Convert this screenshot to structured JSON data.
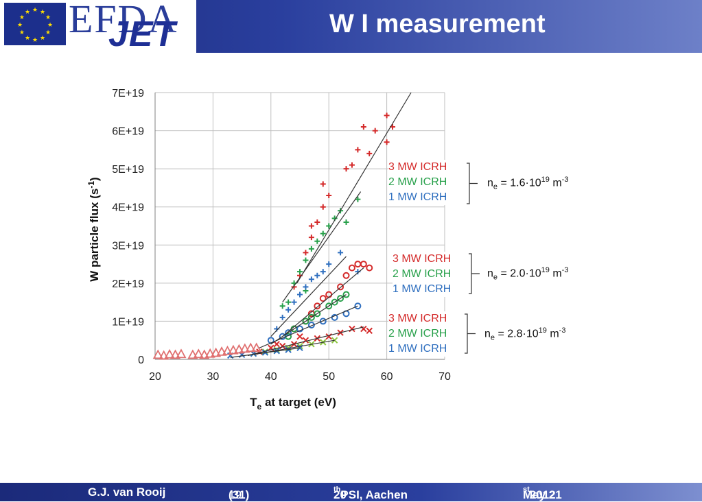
{
  "header": {
    "title": "W I measurement",
    "logo_efda": "EFDA",
    "logo_jet": "JET"
  },
  "footer": {
    "author": "G.J. van Rooij",
    "page": "19",
    "page_total": "(31)",
    "conf_num": "20",
    "conf_sup": "th",
    "conf_rest": " PSI, Aachen",
    "date_pre": "May 21",
    "date_sup": "st",
    "date_post": " 2012"
  },
  "colors": {
    "red": "#d42a2a",
    "green": "#27a04a",
    "blue": "#2f6fbf",
    "lightgreen": "#8cc63f",
    "line": "#333333"
  },
  "chart_data": {
    "type": "scatter",
    "xlabel_main": "T",
    "xlabel_sub": "e",
    "xlabel_rest": " at target (eV)",
    "ylabel_main": "W particle flux (s",
    "ylabel_sup": "-1",
    "ylabel_end": ")",
    "xlim": [
      20,
      70
    ],
    "ylim": [
      0,
      7e+19
    ],
    "x_ticks": [
      20,
      30,
      40,
      50,
      60,
      70
    ],
    "x_tick_labels": [
      "20",
      "30",
      "40",
      "50",
      "60",
      "70"
    ],
    "y_ticks": [
      0,
      1e+19,
      2e+19,
      3e+19,
      4e+19,
      5e+19,
      6e+19,
      7e+19
    ],
    "y_tick_labels": [
      "0",
      "1E+19",
      "2E+19",
      "3E+19",
      "4E+19",
      "5E+19",
      "6E+19",
      "7E+19"
    ],
    "grid": true,
    "series": [
      {
        "marker": "plus",
        "color": "#d42a2a",
        "points": [
          [
            45,
            2.2e+19
          ],
          [
            46,
            2.8e+19
          ],
          [
            47,
            3.2e+19
          ],
          [
            48,
            3.6e+19
          ],
          [
            49,
            4e+19
          ],
          [
            50,
            4.3e+19
          ],
          [
            53,
            5e+19
          ],
          [
            54,
            5.1e+19
          ],
          [
            55,
            5.5e+19
          ],
          [
            56,
            6.1e+19
          ],
          [
            57,
            5.4e+19
          ],
          [
            58,
            6e+19
          ],
          [
            60,
            6.4e+19
          ],
          [
            60,
            5.7e+19
          ],
          [
            61,
            6.1e+19
          ],
          [
            44,
            1.9e+19
          ],
          [
            47,
            3.5e+19
          ],
          [
            49,
            4.6e+19
          ]
        ]
      },
      {
        "marker": "plus",
        "color": "#27a04a",
        "points": [
          [
            43,
            1.5e+19
          ],
          [
            44,
            2e+19
          ],
          [
            45,
            2.3e+19
          ],
          [
            46,
            2.6e+19
          ],
          [
            47,
            2.9e+19
          ],
          [
            48,
            3.1e+19
          ],
          [
            49,
            3.3e+19
          ],
          [
            50,
            3.5e+19
          ],
          [
            51,
            3.7e+19
          ],
          [
            52,
            3.9e+19
          ],
          [
            53,
            3.6e+19
          ],
          [
            55,
            4.2e+19
          ],
          [
            42,
            1.4e+19
          ],
          [
            46,
            1.8e+19
          ]
        ]
      },
      {
        "marker": "plus",
        "color": "#2f6fbf",
        "points": [
          [
            41,
            8e+18
          ],
          [
            42,
            1.1e+19
          ],
          [
            43,
            1.3e+19
          ],
          [
            44,
            1.5e+19
          ],
          [
            45,
            1.7e+19
          ],
          [
            46,
            1.9e+19
          ],
          [
            47,
            2.1e+19
          ],
          [
            48,
            2.2e+19
          ],
          [
            49,
            2.3e+19
          ],
          [
            50,
            2.5e+19
          ],
          [
            52,
            2.8e+19
          ],
          [
            55,
            2.3e+19
          ]
        ]
      },
      {
        "marker": "circle",
        "color": "#d42a2a",
        "points": [
          [
            44,
            8e+18
          ],
          [
            46,
            1e+19
          ],
          [
            47,
            1.2e+19
          ],
          [
            48,
            1.4e+19
          ],
          [
            49,
            1.6e+19
          ],
          [
            50,
            1.7e+19
          ],
          [
            52,
            1.9e+19
          ],
          [
            53,
            2.2e+19
          ],
          [
            54,
            2.4e+19
          ],
          [
            55,
            2.5e+19
          ],
          [
            56,
            2.5e+19
          ],
          [
            57,
            2.4e+19
          ]
        ]
      },
      {
        "marker": "circle",
        "color": "#27a04a",
        "points": [
          [
            43,
            6e+18
          ],
          [
            44,
            8e+18
          ],
          [
            46,
            1e+19
          ],
          [
            47,
            1.1e+19
          ],
          [
            48,
            1.2e+19
          ],
          [
            50,
            1.4e+19
          ],
          [
            51,
            1.5e+19
          ],
          [
            52,
            1.6e+19
          ],
          [
            53,
            1.7e+19
          ]
        ]
      },
      {
        "marker": "circle",
        "color": "#2f6fbf",
        "points": [
          [
            40,
            5e+18
          ],
          [
            42,
            6e+18
          ],
          [
            43,
            7e+18
          ],
          [
            45,
            8e+18
          ],
          [
            47,
            9e+18
          ],
          [
            49,
            1e+19
          ],
          [
            51,
            1.1e+19
          ],
          [
            53,
            1.2e+19
          ],
          [
            55,
            1.4e+19
          ]
        ]
      },
      {
        "marker": "cross",
        "color": "#d42a2a",
        "points": [
          [
            38,
            2e+18
          ],
          [
            40,
            3e+18
          ],
          [
            42,
            3.5e+18
          ],
          [
            44,
            4e+18
          ],
          [
            46,
            5e+18
          ],
          [
            48,
            5.5e+18
          ],
          [
            50,
            6e+18
          ],
          [
            52,
            7e+18
          ],
          [
            54,
            8e+18
          ],
          [
            56,
            8e+18
          ],
          [
            57,
            7.5e+18
          ],
          [
            41,
            4e+18
          ],
          [
            45,
            6e+18
          ]
        ]
      },
      {
        "marker": "cross",
        "color": "#8cc63f",
        "points": [
          [
            37,
            1.5e+18
          ],
          [
            39,
            2e+18
          ],
          [
            41,
            2.5e+18
          ],
          [
            43,
            3e+18
          ],
          [
            45,
            3.5e+18
          ],
          [
            47,
            4e+18
          ],
          [
            49,
            4.5e+18
          ],
          [
            51,
            5e+18
          ]
        ]
      },
      {
        "marker": "cross",
        "color": "#2f6fbf",
        "points": [
          [
            33,
            1e+18
          ],
          [
            35,
            1.2e+18
          ],
          [
            37,
            1.5e+18
          ],
          [
            39,
            1.8e+18
          ],
          [
            41,
            2.2e+18
          ],
          [
            43,
            2.5e+18
          ],
          [
            45,
            3e+18
          ]
        ]
      },
      {
        "marker": "triangle",
        "color": "#e07070",
        "points": [
          [
            20.5,
            1.2e+18
          ],
          [
            21.5,
            1e+18
          ],
          [
            22.5,
            1.3e+18
          ],
          [
            23.5,
            1.2e+18
          ],
          [
            24.5,
            1.4e+18
          ],
          [
            26.5,
            1.2e+18
          ],
          [
            27.5,
            1.4e+18
          ],
          [
            28.5,
            1.2e+18
          ],
          [
            29.5,
            1.5e+18
          ],
          [
            30.5,
            1.7e+18
          ],
          [
            31.5,
            2e+18
          ],
          [
            32.5,
            2.2e+18
          ],
          [
            33.5,
            2.4e+18
          ],
          [
            34.5,
            2.6e+18
          ],
          [
            35.5,
            2.8e+18
          ],
          [
            36.5,
            3e+18
          ],
          [
            37.5,
            3e+18
          ]
        ]
      }
    ],
    "fit_lines": [
      {
        "x": [
          44.5,
          64.2
        ],
        "y": [
          2e+19,
          7e+19
        ]
      },
      {
        "x": [
          42,
          55.5
        ],
        "y": [
          1.5e+19,
          4.4e+19
        ]
      },
      {
        "x": [
          40,
          53
        ],
        "y": [
          6e+18,
          2.7e+19
        ]
      },
      {
        "x": [
          42,
          56
        ],
        "y": [
          6e+18,
          2.4e+19
        ]
      },
      {
        "x": [
          40,
          53
        ],
        "y": [
          4e+18,
          1.7e+19
        ]
      },
      {
        "x": [
          38,
          55
        ],
        "y": [
          3e+18,
          1.4e+19
        ]
      },
      {
        "x": [
          36,
          56
        ],
        "y": [
          1e+18,
          8.5e+18
        ]
      },
      {
        "x": [
          36,
          51
        ],
        "y": [
          1e+18,
          5e+18
        ]
      },
      {
        "x": [
          33,
          45
        ],
        "y": [
          5e+17,
          3e+18
        ]
      }
    ],
    "groups": [
      {
        "labels": [
          "3 MW ICRH",
          "2 MW ICRH",
          "1 MW ICRH"
        ],
        "ne_pre": "n",
        "ne_sub": "e",
        "ne_mid": " =  1.6·10",
        "ne_sup": "19",
        "ne_unit": " m",
        "ne_unit_sup": "-3"
      },
      {
        "labels": [
          "3 MW ICRH",
          "2 MW ICRH",
          "1 MW ICRH"
        ],
        "ne_pre": "n",
        "ne_sub": "e",
        "ne_mid": " =  2.0·10",
        "ne_sup": "19",
        "ne_unit": " m",
        "ne_unit_sup": "-3"
      },
      {
        "labels": [
          "3 MW ICRH",
          "2 MW ICRH",
          "1 MW ICRH"
        ],
        "ne_pre": "n",
        "ne_sub": "e",
        "ne_mid": " =  2.8·10",
        "ne_sup": "19",
        "ne_unit": " m",
        "ne_unit_sup": "-3"
      }
    ]
  }
}
